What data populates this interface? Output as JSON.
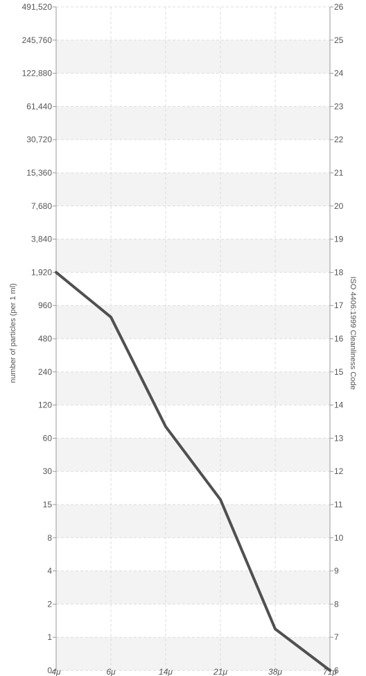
{
  "chart_data": {
    "type": "line",
    "ylabel_left": "number of particles (per 1 ml)",
    "ylabel_right": "ISO 4406:1999 Cleanliness Code",
    "y_left_ticks": [
      "0",
      "1",
      "2",
      "4",
      "8",
      "15",
      "30",
      "60",
      "120",
      "240",
      "480",
      "960",
      "1,920",
      "3,840",
      "7,680",
      "15,360",
      "30,720",
      "61,440",
      "122,880",
      "245,760",
      "491,520"
    ],
    "y_right_ticks": [
      "6",
      "7",
      "8",
      "9",
      "10",
      "11",
      "12",
      "13",
      "14",
      "15",
      "16",
      "17",
      "18",
      "19",
      "20",
      "21",
      "22",
      "23",
      "24",
      "25",
      "26"
    ],
    "categories": [
      "4μ",
      "6μ",
      "14μ",
      "21μ",
      "38μ",
      "71μ"
    ],
    "y_scale": "log2 (ISO code levels)",
    "ylim_code": [
      6,
      26
    ],
    "series": [
      {
        "values_code": [
          18,
          16.65,
          13.35,
          11.15,
          7.25,
          6.0
        ],
        "color": "#505050"
      }
    ],
    "grid": true,
    "band_color": "#f3f3f3",
    "line_color": "#505050"
  }
}
